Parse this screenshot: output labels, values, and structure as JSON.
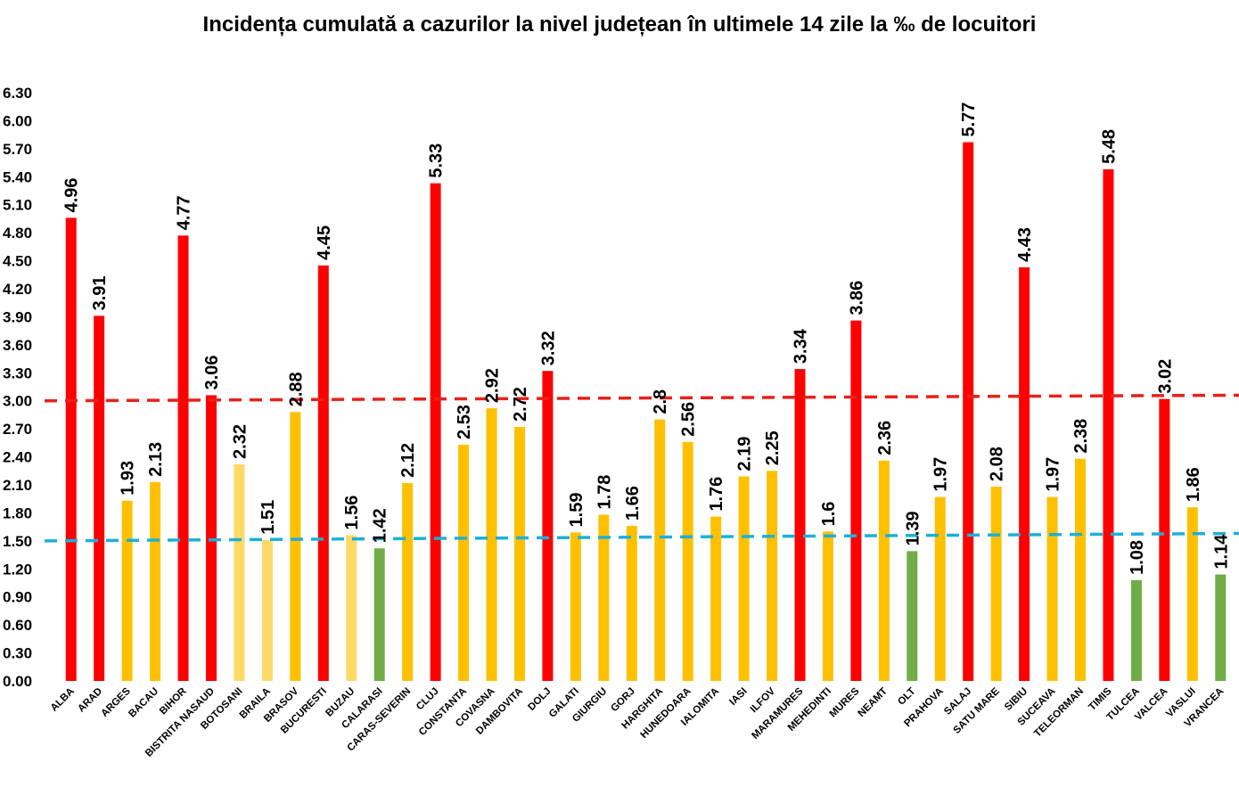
{
  "chart_data": {
    "type": "bar",
    "title": "Incidența cumulată a cazurilor la nivel județean în ultimele 14 zile la ‰ de locuitori",
    "xlabel": "",
    "ylabel": "",
    "ylim": [
      0,
      6.3
    ],
    "yticks": [
      "0.00",
      "0.30",
      "0.60",
      "0.90",
      "1.20",
      "1.50",
      "1.80",
      "2.10",
      "2.40",
      "2.70",
      "3.00",
      "3.30",
      "3.60",
      "3.90",
      "4.20",
      "4.50",
      "4.80",
      "5.10",
      "5.40",
      "5.70",
      "6.00",
      "6.30"
    ],
    "grid": false,
    "categories": [
      "ALBA",
      "ARAD",
      "ARGES",
      "BACAU",
      "BIHOR",
      "BISTRITA NASAUD",
      "BOTOSANI",
      "BRAILA",
      "BRASOV",
      "BUCURESTI",
      "BUZAU",
      "CALARASI",
      "CARAS-SEVERIN",
      "CLUJ",
      "CONSTANTA",
      "COVASNA",
      "DAMBOVITA",
      "DOLJ",
      "GALATI",
      "GIURGIU",
      "GORJ",
      "HARGHITA",
      "HUNEDOARA",
      "IALOMITA",
      "IASI",
      "ILFOV",
      "MARAMURES",
      "MEHEDINTI",
      "MURES",
      "NEAMT",
      "OLT",
      "PRAHOVA",
      "SALAJ",
      "SATU MARE",
      "SIBIU",
      "SUCEAVA",
      "TELEORMAN",
      "TIMIS",
      "TULCEA",
      "VALCEA",
      "VASLUI",
      "VRANCEA"
    ],
    "values": [
      4.96,
      3.91,
      1.93,
      2.13,
      4.77,
      3.06,
      2.32,
      1.51,
      2.88,
      4.45,
      1.56,
      1.42,
      2.12,
      5.33,
      2.53,
      2.92,
      2.72,
      3.32,
      1.59,
      1.78,
      1.66,
      2.8,
      2.56,
      1.76,
      2.19,
      2.25,
      3.34,
      1.6,
      3.86,
      2.36,
      1.39,
      1.97,
      5.77,
      2.08,
      4.43,
      1.97,
      2.38,
      5.48,
      1.08,
      3.02,
      1.86,
      1.14
    ],
    "value_labels": [
      "4.96",
      "3.91",
      "1.93",
      "2.13",
      "4.77",
      "3.06",
      "2.32",
      "1.51",
      "2.88",
      "4.45",
      "1.56",
      "1.42",
      "2.12",
      "5.33",
      "2.53",
      "2.92",
      "2.72",
      "3.32",
      "1.59",
      "1.78",
      "1.66",
      "2.8",
      "2.56",
      "1.76",
      "2.19",
      "2.25",
      "3.34",
      "1.6",
      "3.86",
      "2.36",
      "1.39",
      "1.97",
      "5.77",
      "2.08",
      "4.43",
      "1.97",
      "2.38",
      "5.48",
      "1.08",
      "3.02",
      "1.86",
      "1.14"
    ],
    "bar_colors": [
      "#ff0000",
      "#ff0000",
      "#ffc000",
      "#ffc000",
      "#ff0000",
      "#ff0000",
      "#ffd966",
      "#ffd966",
      "#ffc000",
      "#ff0000",
      "#ffd966",
      "#70ad47",
      "#ffc000",
      "#ff0000",
      "#ffc000",
      "#ffc000",
      "#ffc000",
      "#ff0000",
      "#ffc000",
      "#ffc000",
      "#ffc000",
      "#ffc000",
      "#ffc000",
      "#ffc000",
      "#ffc000",
      "#ffc000",
      "#ff0000",
      "#ffc000",
      "#ff0000",
      "#ffc000",
      "#70ad47",
      "#ffc000",
      "#ff0000",
      "#ffc000",
      "#ff0000",
      "#ffc000",
      "#ffc000",
      "#ff0000",
      "#70ad47",
      "#ff0000",
      "#ffc000",
      "#70ad47"
    ],
    "threshold_lines": [
      {
        "color": "#e8211a",
        "y_start": 3.0,
        "y_end": 3.06
      },
      {
        "color": "#1cb0d8",
        "y_start": 1.5,
        "y_end": 1.58
      }
    ]
  }
}
